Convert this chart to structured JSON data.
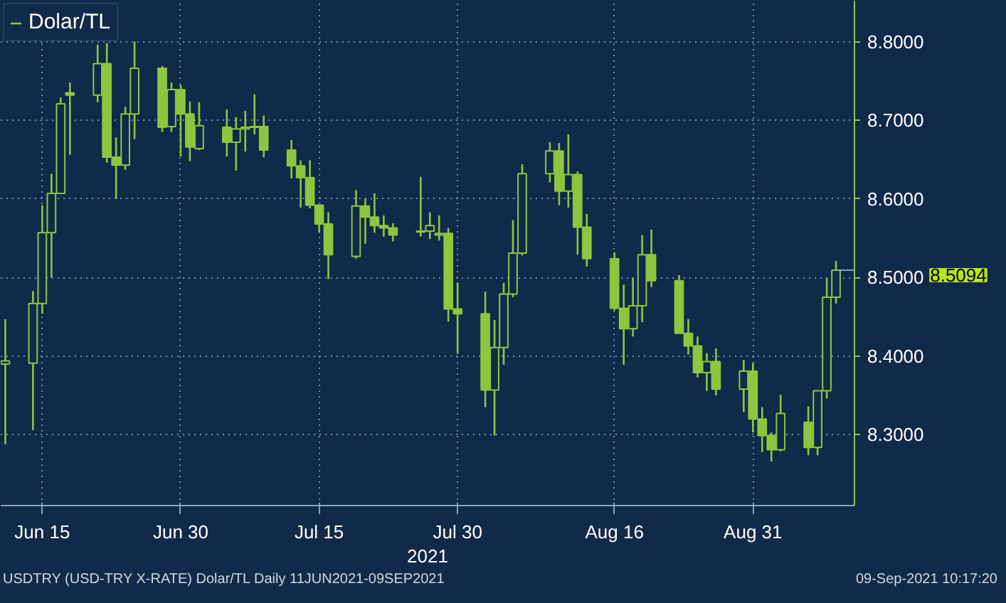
{
  "chart_data": {
    "type": "candlestick",
    "xlabel": "2021",
    "x": [
      "2021-06-11",
      "2021-06-14",
      "2021-06-15",
      "2021-06-16",
      "2021-06-17",
      "2021-06-18",
      "2021-06-21",
      "2021-06-22",
      "2021-06-23",
      "2021-06-24",
      "2021-06-25",
      "2021-06-28",
      "2021-06-29",
      "2021-06-30",
      "2021-07-01",
      "2021-07-02",
      "2021-07-05",
      "2021-07-06",
      "2021-07-07",
      "2021-07-08",
      "2021-07-09",
      "2021-07-12",
      "2021-07-13",
      "2021-07-14",
      "2021-07-15",
      "2021-07-16",
      "2021-07-19",
      "2021-07-20",
      "2021-07-21",
      "2021-07-22",
      "2021-07-23",
      "2021-07-26",
      "2021-07-27",
      "2021-07-28",
      "2021-07-29",
      "2021-07-30",
      "2021-08-02",
      "2021-08-03",
      "2021-08-04",
      "2021-08-05",
      "2021-08-06",
      "2021-08-09",
      "2021-08-10",
      "2021-08-11",
      "2021-08-12",
      "2021-08-13",
      "2021-08-16",
      "2021-08-17",
      "2021-08-18",
      "2021-08-19",
      "2021-08-20",
      "2021-08-23",
      "2021-08-24",
      "2021-08-25",
      "2021-08-26",
      "2021-08-27",
      "2021-08-30",
      "2021-08-31",
      "2021-09-01",
      "2021-09-02",
      "2021-09-03",
      "2021-09-06",
      "2021-09-07",
      "2021-09-08",
      "2021-09-09"
    ],
    "series": [
      {
        "name": "Dolar/TL",
        "color": "#8dc63f",
        "ohlc": [
          [
            8.39,
            8.447,
            8.288,
            8.394
          ],
          [
            8.391,
            8.483,
            8.306,
            8.467
          ],
          [
            8.467,
            8.592,
            8.454,
            8.557
          ],
          [
            8.557,
            8.632,
            8.5,
            8.607
          ],
          [
            8.607,
            8.729,
            8.607,
            8.721
          ],
          [
            8.735,
            8.748,
            8.656,
            8.732
          ],
          [
            8.732,
            8.796,
            8.723,
            8.772
          ],
          [
            8.772,
            8.798,
            8.646,
            8.653
          ],
          [
            8.653,
            8.678,
            8.6,
            8.643
          ],
          [
            8.643,
            8.717,
            8.637,
            8.708
          ],
          [
            8.708,
            8.8,
            8.676,
            8.766
          ],
          [
            8.766,
            8.769,
            8.685,
            8.691
          ],
          [
            8.692,
            8.748,
            8.685,
            8.739
          ],
          [
            8.739,
            8.745,
            8.654,
            8.708
          ],
          [
            8.708,
            8.724,
            8.648,
            8.666
          ],
          [
            8.664,
            8.723,
            8.662,
            8.693
          ],
          [
            8.691,
            8.714,
            8.654,
            8.672
          ],
          [
            8.672,
            8.704,
            8.636,
            8.689
          ],
          [
            8.689,
            8.712,
            8.66,
            8.691
          ],
          [
            8.691,
            8.733,
            8.682,
            8.692
          ],
          [
            8.692,
            8.706,
            8.653,
            8.662
          ],
          [
            8.662,
            8.675,
            8.626,
            8.642
          ],
          [
            8.642,
            8.649,
            8.589,
            8.627
          ],
          [
            8.627,
            8.649,
            8.588,
            8.592
          ],
          [
            8.592,
            8.592,
            8.557,
            8.568
          ],
          [
            8.568,
            8.583,
            8.498,
            8.529
          ],
          [
            8.527,
            8.611,
            8.524,
            8.591
          ],
          [
            8.591,
            8.6,
            8.543,
            8.577
          ],
          [
            8.577,
            8.607,
            8.557,
            8.566
          ],
          [
            8.566,
            8.579,
            8.552,
            8.563
          ],
          [
            8.563,
            8.569,
            8.546,
            8.554
          ],
          [
            8.558,
            8.628,
            8.552,
            8.559
          ],
          [
            8.559,
            8.583,
            8.549,
            8.566
          ],
          [
            8.554,
            8.579,
            8.547,
            8.556
          ],
          [
            8.556,
            8.563,
            8.444,
            8.46
          ],
          [
            8.46,
            8.493,
            8.403,
            8.454
          ],
          [
            8.454,
            8.482,
            8.335,
            8.357
          ],
          [
            8.357,
            8.446,
            8.299,
            8.411
          ],
          [
            8.411,
            8.493,
            8.389,
            8.479
          ],
          [
            8.479,
            8.573,
            8.475,
            8.531
          ],
          [
            8.531,
            8.644,
            8.528,
            8.632
          ],
          [
            8.632,
            8.672,
            8.621,
            8.661
          ],
          [
            8.661,
            8.671,
            8.592,
            8.61
          ],
          [
            8.61,
            8.682,
            8.589,
            8.631
          ],
          [
            8.631,
            8.635,
            8.529,
            8.564
          ],
          [
            8.564,
            8.581,
            8.514,
            8.524
          ],
          [
            8.524,
            8.532,
            8.458,
            8.461
          ],
          [
            8.461,
            8.491,
            8.389,
            8.435
          ],
          [
            8.435,
            8.5,
            8.425,
            8.464
          ],
          [
            8.464,
            8.554,
            8.443,
            8.529
          ],
          [
            8.529,
            8.561,
            8.488,
            8.496
          ],
          [
            8.496,
            8.503,
            8.429,
            8.429
          ],
          [
            8.429,
            8.447,
            8.402,
            8.413
          ],
          [
            8.413,
            8.425,
            8.373,
            8.379
          ],
          [
            8.379,
            8.404,
            8.356,
            8.393
          ],
          [
            8.393,
            8.41,
            8.35,
            8.358
          ],
          [
            8.358,
            8.395,
            8.329,
            8.381
          ],
          [
            8.381,
            8.391,
            8.303,
            8.32
          ],
          [
            8.32,
            8.335,
            8.278,
            8.299
          ],
          [
            8.299,
            8.303,
            8.266,
            8.281
          ],
          [
            8.281,
            8.351,
            8.279,
            8.327
          ],
          [
            8.316,
            8.336,
            8.274,
            8.284
          ],
          [
            8.284,
            8.356,
            8.274,
            8.356
          ],
          [
            8.356,
            8.5,
            8.346,
            8.475
          ],
          [
            8.475,
            8.521,
            8.467,
            8.5094
          ]
        ]
      }
    ],
    "xlim": [
      "2021-06-10T12:00",
      "2021-09-11"
    ],
    "xticks": [
      {
        "value": "2021-06-15",
        "label": "Jun 15"
      },
      {
        "value": "2021-06-30",
        "label": "Jun 30"
      },
      {
        "value": "2021-07-15",
        "label": "Jul 15"
      },
      {
        "value": "2021-07-30",
        "label": "Jul 30"
      },
      {
        "value": "2021-08-16",
        "label": "Aug 16"
      },
      {
        "value": "2021-08-31",
        "label": "Aug 31"
      }
    ],
    "ylim": [
      8.21,
      8.852
    ],
    "yticks": [
      {
        "value": 8.3,
        "label": "8.3000"
      },
      {
        "value": 8.4,
        "label": "8.4000"
      },
      {
        "value": 8.5,
        "label": "8.5000"
      },
      {
        "value": 8.6,
        "label": "8.6000"
      },
      {
        "value": 8.7,
        "label": "8.7000"
      },
      {
        "value": 8.8,
        "label": "8.8000"
      }
    ],
    "grid": true,
    "legend": "top left",
    "annotations": [
      "8.5094",
      "USDTRY (USD-TRY X-RATE) Dolar/TL  Daily 11JUN2021-09SEP2021",
      "09-Sep-2021 10:17:20"
    ]
  }
}
